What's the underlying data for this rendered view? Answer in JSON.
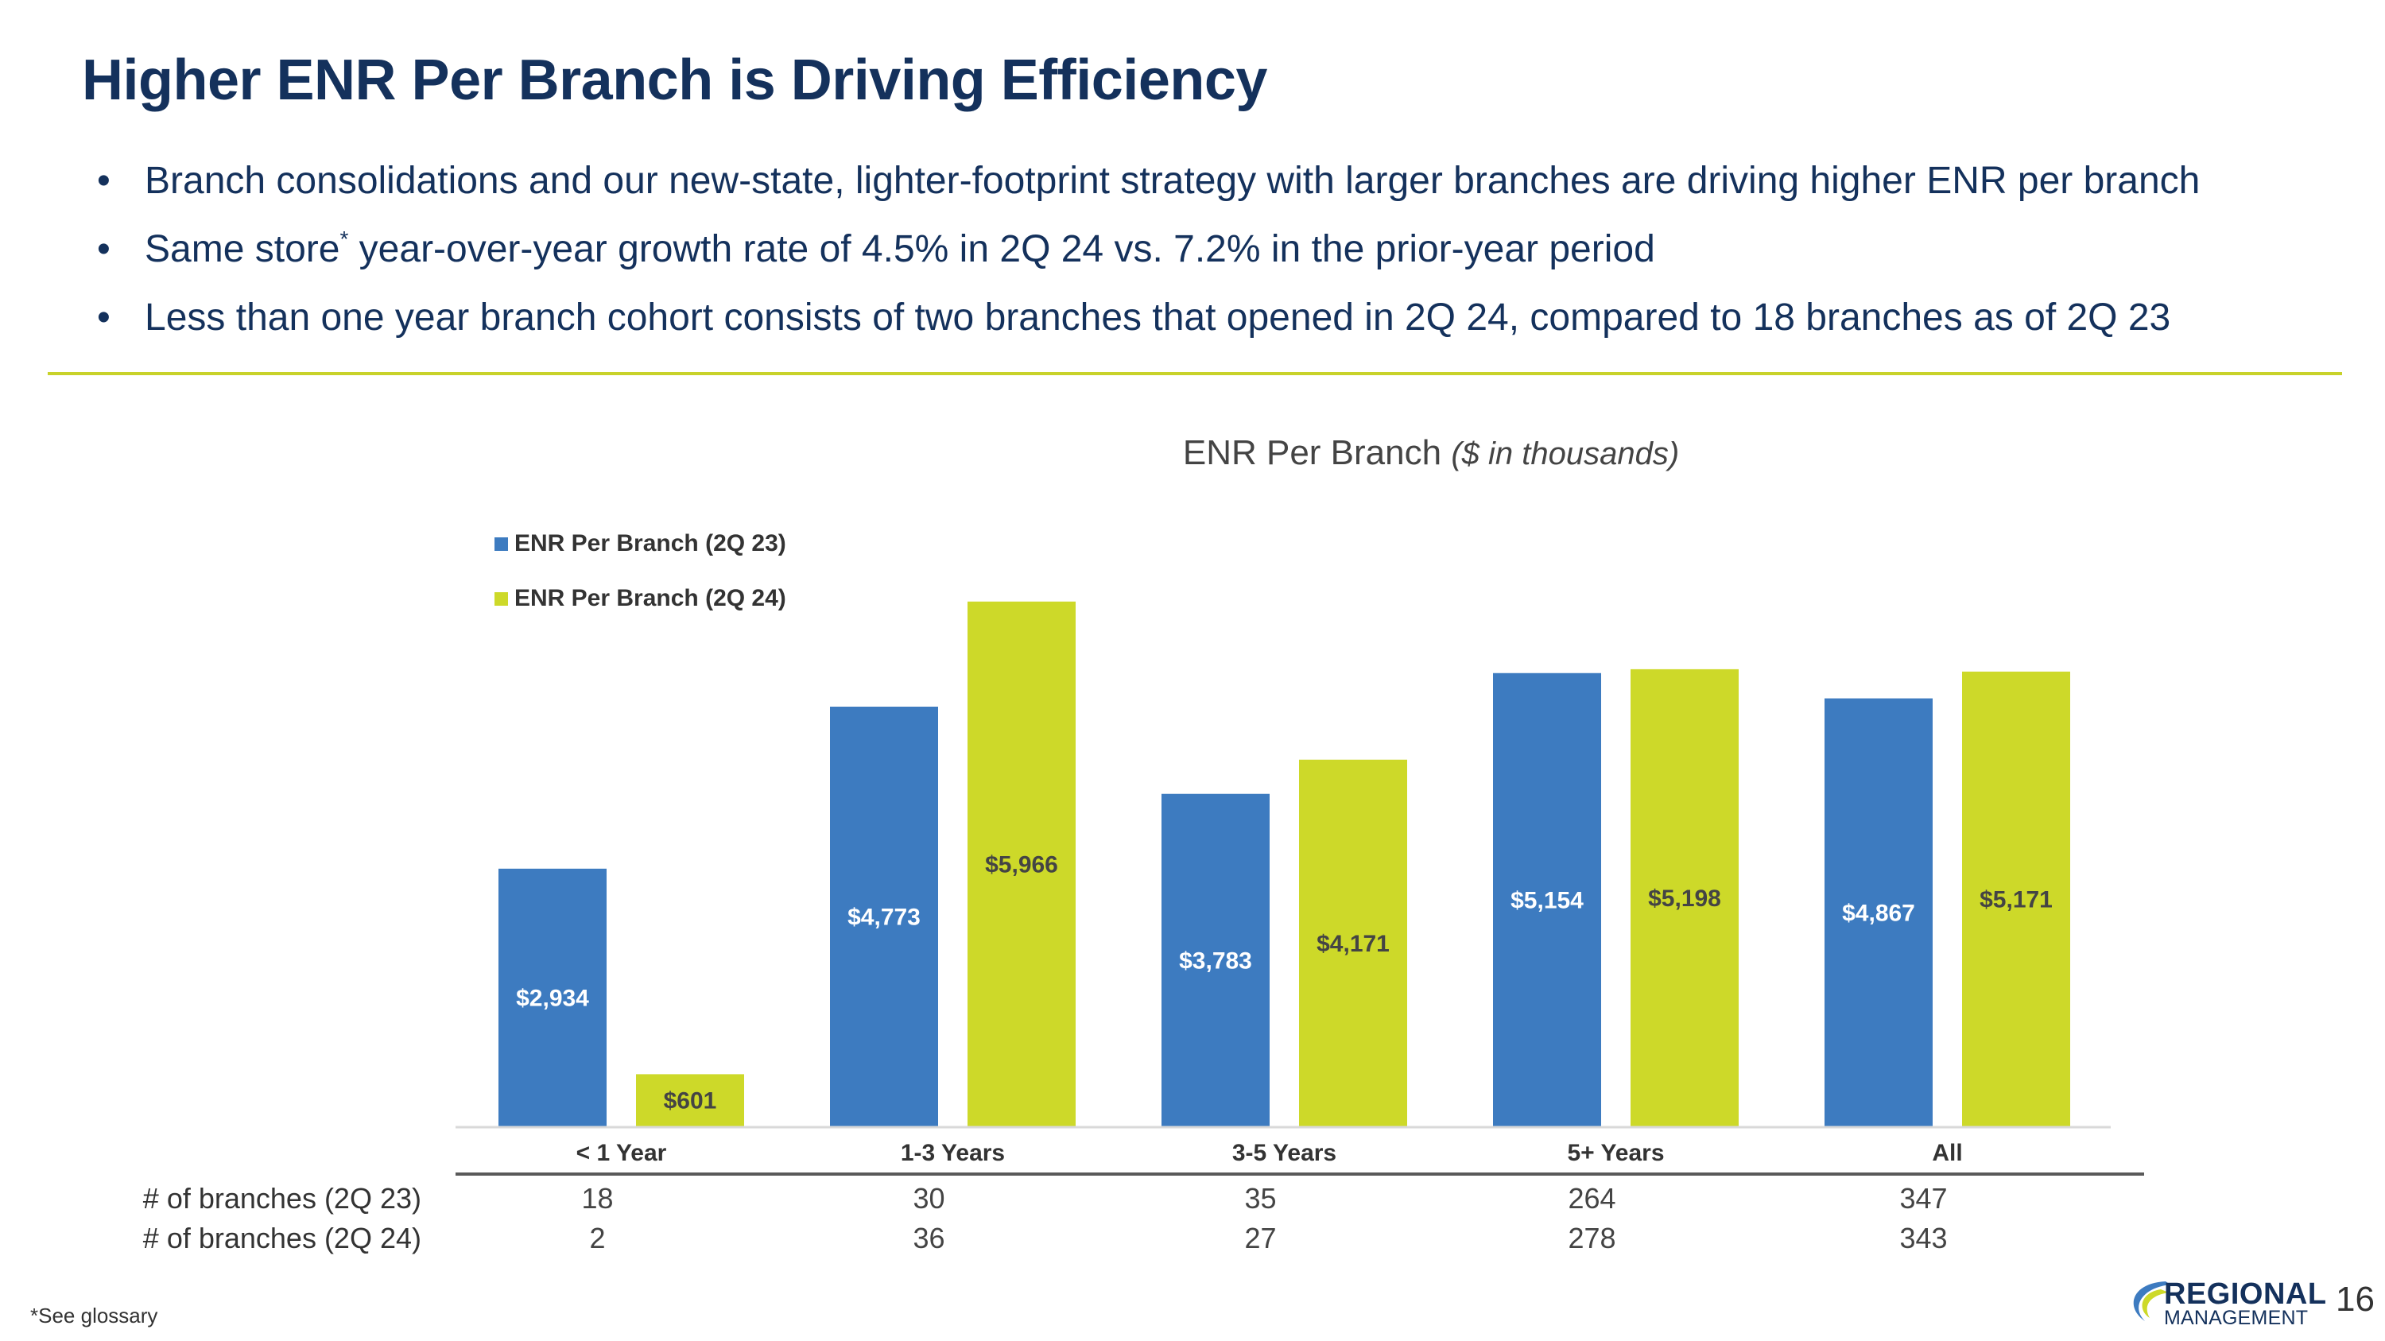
{
  "slide": {
    "title": "Higher ENR Per Branch is Driving Efficiency",
    "bullets": [
      {
        "text": "Branch consolidations and our new-state, lighter-footprint strategy with larger branches are driving higher ENR per branch"
      },
      {
        "text_before": "Same store",
        "sup": "*",
        "text_after": " year-over-year growth rate of 4.5% in 2Q 24 vs. 7.2% in the prior-year period"
      },
      {
        "text": "Less than one year branch cohort consists of two branches that opened in 2Q 24, compared to 18 branches as of 2Q 23"
      }
    ],
    "footnote": "*See glossary",
    "page_number": "16",
    "logo_text": [
      "REGIONAL",
      "MANAGEMENT"
    ]
  },
  "chart_data": {
    "type": "bar",
    "title": "ENR Per Branch",
    "subtitle": "($ in thousands)",
    "categories": [
      "< 1 Year",
      "1-3 Years",
      "3-5 Years",
      "5+ Years",
      "All"
    ],
    "series": [
      {
        "name": "ENR Per Branch (2Q 23)",
        "color": "#3d7bc0",
        "values": [
          2934,
          4773,
          3783,
          5154,
          4867
        ],
        "labels": [
          "$2,934",
          "$4,773",
          "$3,783",
          "$5,154",
          "$4,867"
        ]
      },
      {
        "name": "ENR Per Branch (2Q 24)",
        "color": "#cdd929",
        "values": [
          601,
          5966,
          4171,
          5198,
          5171
        ],
        "labels": [
          "$601",
          "$5,966",
          "$4,171",
          "$5,198",
          "$5,171"
        ]
      }
    ],
    "ylim": [
      0,
      6000
    ],
    "grid": false,
    "legend": "top-left",
    "table": {
      "rows": [
        {
          "label": "# of branches (2Q 23)",
          "values": [
            "18",
            "30",
            "35",
            "264",
            "347"
          ]
        },
        {
          "label": "# of branches (2Q 24)",
          "values": [
            "2",
            "36",
            "27",
            "278",
            "343"
          ]
        }
      ]
    }
  }
}
